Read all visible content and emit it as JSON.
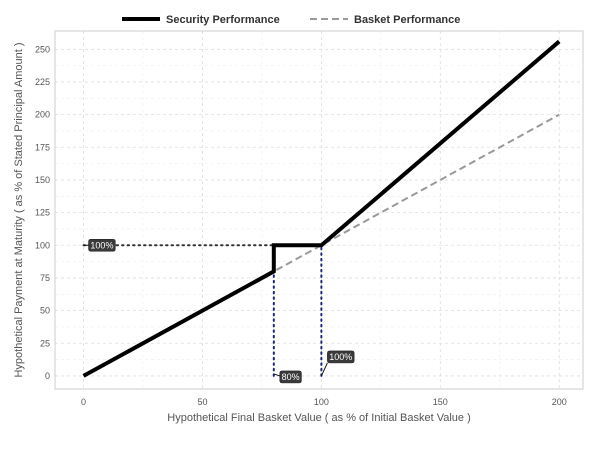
{
  "chart_data": {
    "type": "line",
    "xlabel": "Hypothetical Final Basket Value ( as % of Initial Basket Value )",
    "ylabel": "Hypothetical Payment at Maturity ( as % of Stated Principal Amount )",
    "xlim": [
      -12,
      210
    ],
    "ylim": [
      -10,
      264
    ],
    "x_ticks": [
      0,
      50,
      100,
      150,
      200
    ],
    "y_ticks": [
      0,
      25,
      50,
      75,
      100,
      125,
      150,
      175,
      200,
      225,
      250
    ],
    "grid": true,
    "legend_position": "top-center",
    "series": [
      {
        "name": "Security Performance",
        "color": "#000000",
        "style": "solid",
        "points": [
          [
            0,
            0
          ],
          [
            80,
            80
          ],
          [
            80,
            100
          ],
          [
            100,
            100
          ],
          [
            200,
            256
          ]
        ]
      },
      {
        "name": "Basket Performance",
        "color": "#999999",
        "style": "dashed",
        "points": [
          [
            0,
            0
          ],
          [
            200,
            200
          ]
        ]
      }
    ],
    "reference_lines": [
      {
        "color": "#333333",
        "style": "dotted",
        "points": [
          [
            0,
            100
          ],
          [
            80,
            100
          ]
        ]
      },
      {
        "color": "#1a237e",
        "style": "dotted",
        "points": [
          [
            80,
            0
          ],
          [
            80,
            100
          ]
        ]
      },
      {
        "color": "#1a237e",
        "style": "dotted",
        "points": [
          [
            100,
            0
          ],
          [
            100,
            100
          ]
        ]
      }
    ],
    "annotations": [
      {
        "text": "100%",
        "x": 0,
        "y": 100
      },
      {
        "text": "80%",
        "x": 80,
        "y": 0
      },
      {
        "text": "100%",
        "x": 100,
        "y": 0
      }
    ]
  }
}
